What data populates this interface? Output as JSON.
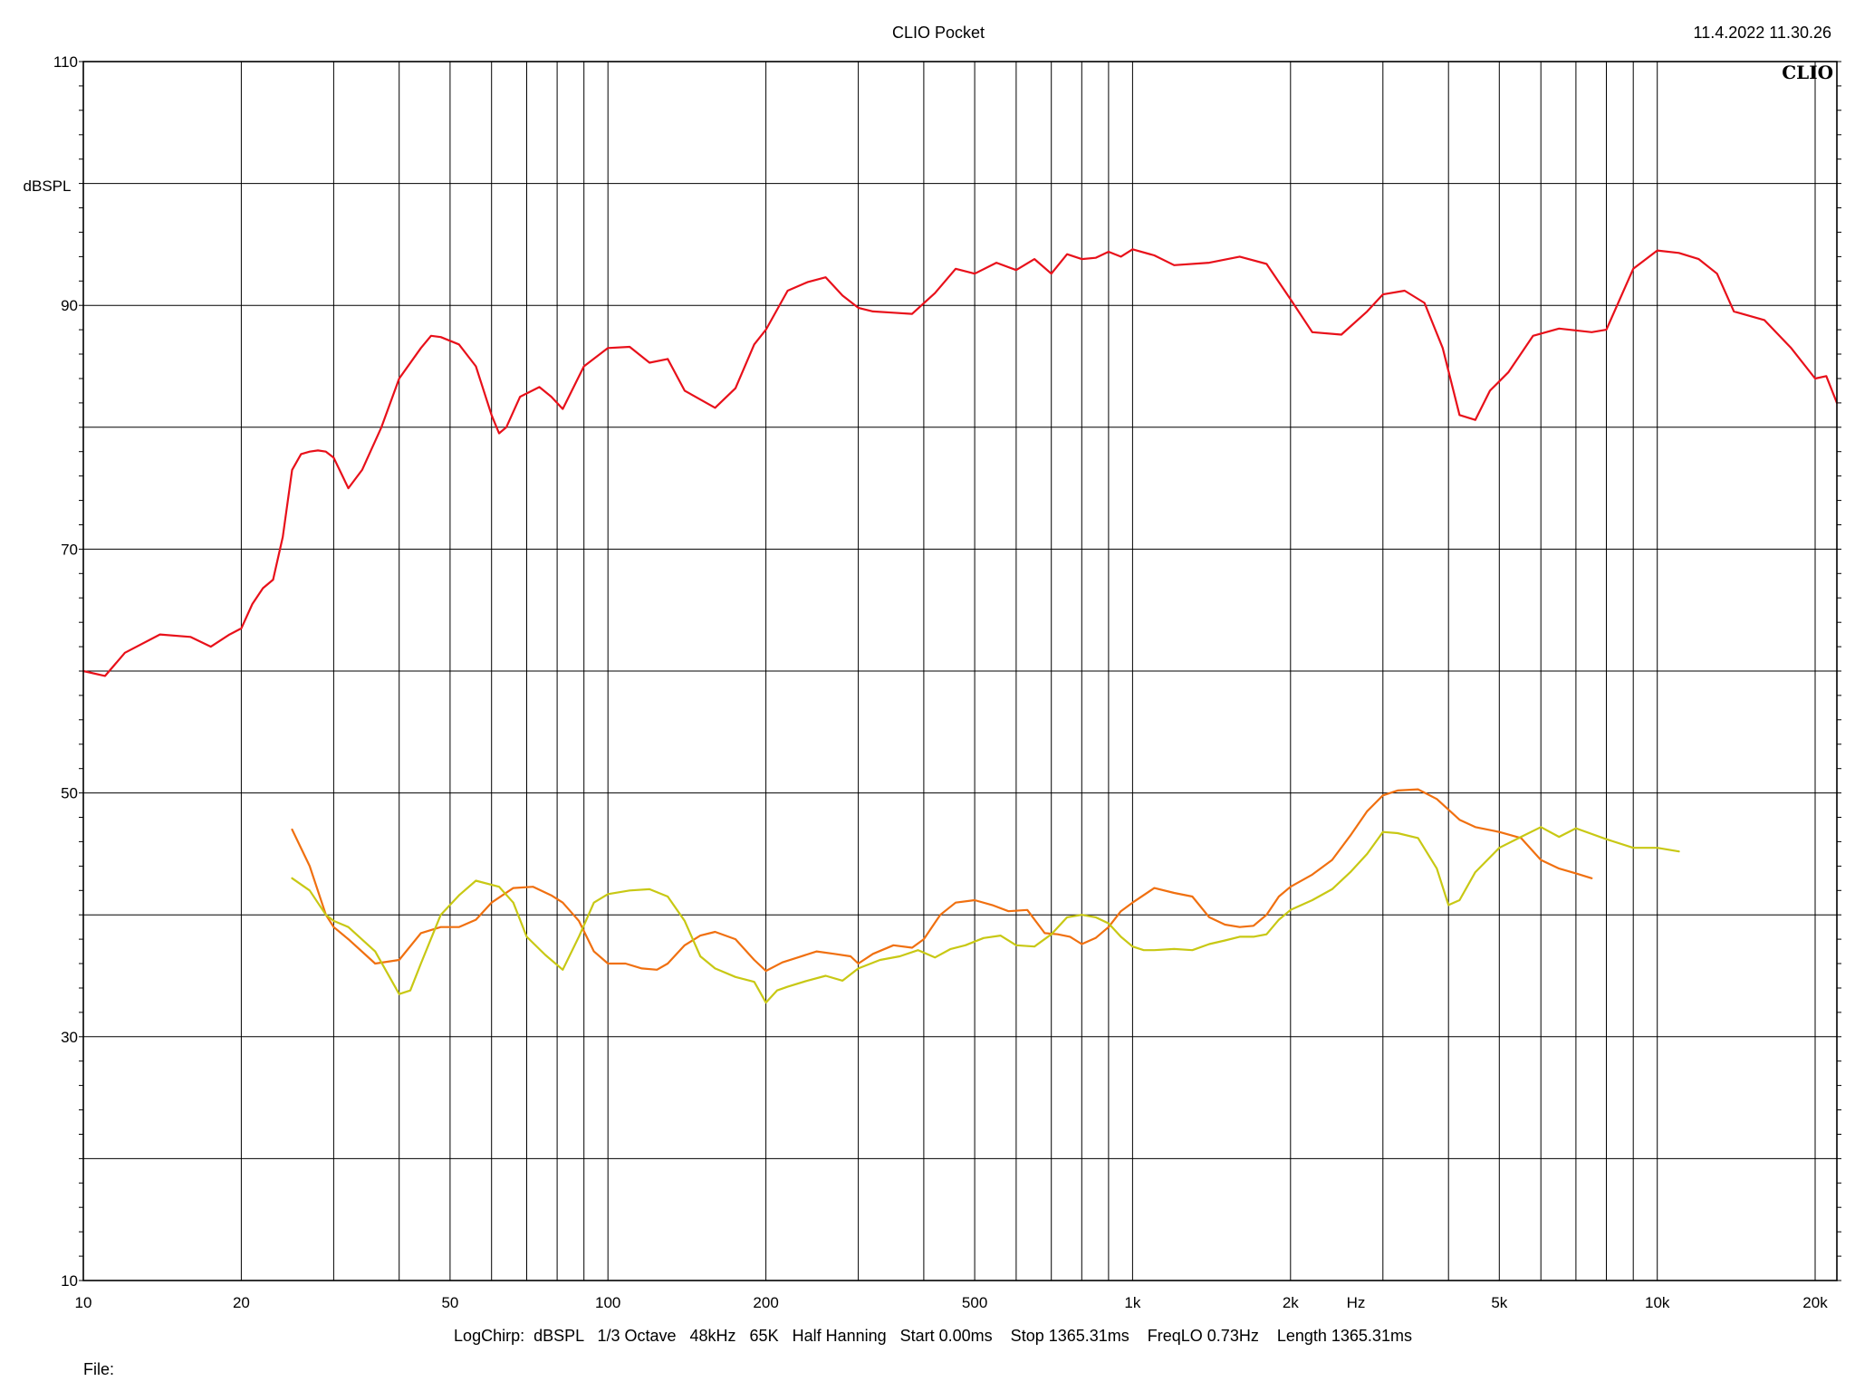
{
  "header": {
    "title": "CLIO Pocket",
    "timestamp": "11.4.2022 11.30.26",
    "logo": "CLIO"
  },
  "footer": {
    "info": "LogChirp:  dBSPL   1/3 Octave   48kHz   65K   Half Hanning   Start 0.00ms    Stop 1365.31ms    FreqLO 0.73Hz    Length 1365.31ms",
    "file_label": "File:"
  },
  "chart_data": {
    "type": "line",
    "xscale": "log",
    "xlim": [
      10,
      22000
    ],
    "ylim": [
      10,
      110
    ],
    "xlabel": "Hz",
    "ylabel": "dBSPL",
    "grid": true,
    "x_ticks": [
      {
        "value": 10,
        "label": "10"
      },
      {
        "value": 20,
        "label": "20"
      },
      {
        "value": 50,
        "label": "50"
      },
      {
        "value": 100,
        "label": "100"
      },
      {
        "value": 200,
        "label": "200"
      },
      {
        "value": 500,
        "label": "500"
      },
      {
        "value": 1000,
        "label": "1k"
      },
      {
        "value": 2000,
        "label": "2k"
      },
      {
        "value": 5000,
        "label": "5k"
      },
      {
        "value": 10000,
        "label": "10k"
      },
      {
        "value": 20000,
        "label": "20k"
      }
    ],
    "y_ticks": [
      {
        "value": 110,
        "label": "110"
      },
      {
        "value": 90,
        "label": "90"
      },
      {
        "value": 70,
        "label": "70"
      },
      {
        "value": 50,
        "label": "50"
      },
      {
        "value": 30,
        "label": "30"
      },
      {
        "value": 10,
        "label": "10"
      }
    ],
    "series": [
      {
        "color": "#e8101a",
        "x": [
          10,
          11,
          12,
          14,
          16,
          17.5,
          19,
          20,
          21,
          22,
          23,
          24,
          25,
          26,
          27,
          28,
          29,
          30,
          32,
          34,
          37,
          40,
          44,
          46,
          48,
          52,
          56,
          60,
          62,
          64,
          68,
          74,
          78,
          82,
          90,
          100,
          110,
          120,
          130,
          140,
          160,
          175,
          190,
          200,
          220,
          240,
          260,
          280,
          300,
          320,
          350,
          380,
          420,
          460,
          500,
          550,
          600,
          650,
          700,
          750,
          800,
          850,
          900,
          950,
          1000,
          1100,
          1200,
          1400,
          1600,
          1800,
          2000,
          2200,
          2500,
          2800,
          3000,
          3300,
          3600,
          3900,
          4200,
          4500,
          4800,
          5200,
          5800,
          6500,
          7500,
          8000,
          9000,
          10000,
          11000,
          12000,
          13000,
          14000,
          16000,
          18000,
          20000,
          21000,
          22000
        ],
        "y": [
          60,
          59.6,
          61.5,
          63,
          62.8,
          62,
          63,
          63.5,
          65.5,
          66.8,
          67.5,
          71,
          76.5,
          77.8,
          78,
          78.1,
          78,
          77.5,
          75,
          76.5,
          80,
          84,
          86.5,
          87.5,
          87.4,
          86.8,
          85,
          81,
          79.5,
          80,
          82.5,
          83.3,
          82.5,
          81.5,
          85,
          86.5,
          86.6,
          85.3,
          85.6,
          83,
          81.6,
          83.2,
          86.8,
          88,
          91.2,
          91.9,
          92.3,
          90.8,
          89.8,
          89.5,
          89.4,
          89.3,
          91,
          93,
          92.6,
          93.5,
          92.9,
          93.8,
          92.6,
          94.2,
          93.8,
          93.9,
          94.4,
          94,
          94.6,
          94.1,
          93.3,
          93.5,
          94,
          93.4,
          90.5,
          87.8,
          87.6,
          89.5,
          90.9,
          91.2,
          90.2,
          86.5,
          81,
          80.6,
          83,
          84.5,
          87.5,
          88.1,
          87.8,
          88,
          93,
          94.5,
          94.3,
          93.8,
          92.6,
          89.5,
          88.8,
          86.5,
          84,
          84.2,
          82
        ]
      },
      {
        "color": "#f07010",
        "x": [
          25,
          27,
          29,
          30,
          32,
          36,
          40,
          44,
          48,
          52,
          56,
          60,
          66,
          72,
          78,
          82,
          88,
          94,
          100,
          108,
          116,
          124,
          130,
          140,
          150,
          160,
          175,
          190,
          200,
          215,
          230,
          250,
          270,
          290,
          300,
          320,
          350,
          380,
          400,
          430,
          460,
          500,
          540,
          580,
          630,
          680,
          720,
          760,
          800,
          850,
          900,
          950,
          1000,
          1100,
          1200,
          1300,
          1400,
          1500,
          1600,
          1700,
          1800,
          1900,
          2000,
          2200,
          2400,
          2600,
          2800,
          3000,
          3200,
          3500,
          3800,
          4200,
          4500,
          5000,
          5500,
          6000,
          6500,
          7000,
          7500
        ],
        "y": [
          47,
          44,
          40,
          39,
          38,
          36,
          36.3,
          38.5,
          39,
          39,
          39.6,
          41,
          42.2,
          42.3,
          41.6,
          41,
          39.5,
          37,
          36,
          36,
          35.6,
          35.5,
          36,
          37.5,
          38.3,
          38.6,
          38,
          36.3,
          35.4,
          36.1,
          36.5,
          37,
          36.8,
          36.6,
          36,
          36.8,
          37.5,
          37.3,
          38,
          40,
          41,
          41.2,
          40.8,
          40.3,
          40.4,
          38.5,
          38.4,
          38.2,
          37.6,
          38.1,
          39,
          40.3,
          41,
          42.2,
          41.8,
          41.5,
          39.8,
          39.2,
          39,
          39.1,
          40,
          41.5,
          42.3,
          43.3,
          44.5,
          46.5,
          48.5,
          49.8,
          50.2,
          50.3,
          49.5,
          47.8,
          47.2,
          46.8,
          46.3,
          44.5,
          43.8,
          43.4,
          43
        ]
      },
      {
        "color": "#c8c814",
        "x": [
          25,
          27,
          29,
          30,
          32,
          36,
          40,
          42,
          44,
          48,
          52,
          56,
          62,
          66,
          70,
          76,
          82,
          88,
          94,
          100,
          110,
          120,
          130,
          140,
          150,
          160,
          175,
          190,
          200,
          210,
          220,
          240,
          260,
          280,
          300,
          330,
          360,
          390,
          420,
          450,
          480,
          520,
          560,
          600,
          650,
          700,
          750,
          800,
          850,
          900,
          950,
          1000,
          1050,
          1100,
          1200,
          1300,
          1400,
          1500,
          1600,
          1700,
          1800,
          1900,
          2000,
          2200,
          2400,
          2600,
          2800,
          3000,
          3200,
          3500,
          3800,
          4000,
          4200,
          4500,
          5000,
          5500,
          6000,
          6500,
          7000,
          8000,
          9000,
          10000,
          11000
        ],
        "y": [
          43,
          42,
          40,
          39.5,
          39,
          37,
          33.5,
          33.8,
          36,
          40,
          41.6,
          42.8,
          42.3,
          41,
          38.2,
          36.7,
          35.5,
          38.2,
          41,
          41.7,
          42,
          42.1,
          41.5,
          39.5,
          36.6,
          35.6,
          34.9,
          34.5,
          32.8,
          33.8,
          34.1,
          34.6,
          35,
          34.6,
          35.6,
          36.3,
          36.6,
          37.1,
          36.5,
          37.2,
          37.5,
          38.1,
          38.3,
          37.5,
          37.4,
          38.4,
          39.8,
          40,
          39.8,
          39.3,
          38.2,
          37.4,
          37.1,
          37.1,
          37.2,
          37.1,
          37.6,
          37.9,
          38.2,
          38.2,
          38.4,
          39.6,
          40.4,
          41.2,
          42.1,
          43.5,
          45,
          46.8,
          46.7,
          46.3,
          43.8,
          40.8,
          41.2,
          43.5,
          45.5,
          46.4,
          47.2,
          46.4,
          47.1,
          46.2,
          45.5,
          45.5,
          45.2
        ]
      }
    ]
  }
}
